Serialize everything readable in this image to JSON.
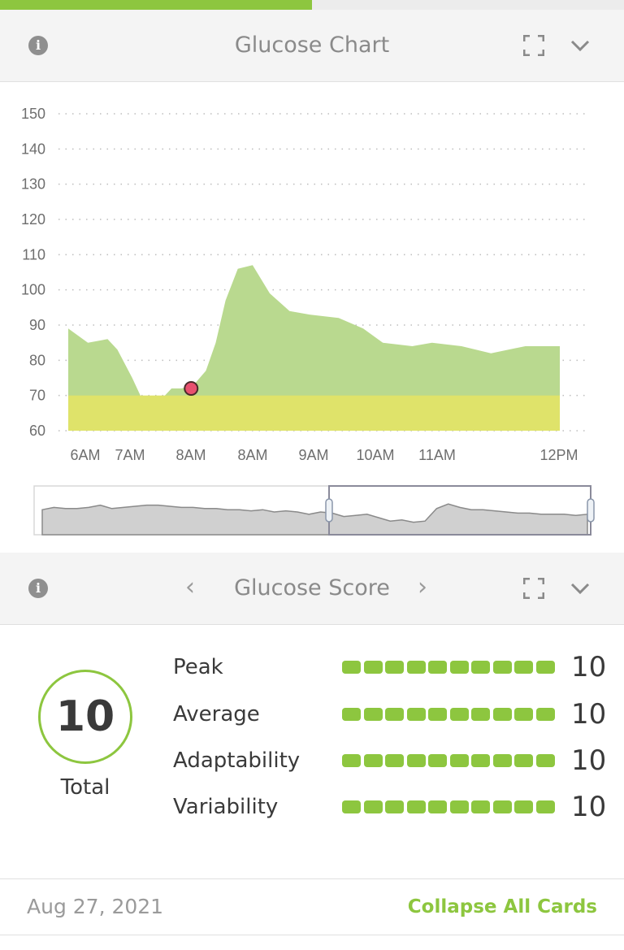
{
  "progress": {
    "fraction": 0.5,
    "color": "#8dc63f"
  },
  "glucose_card": {
    "title": "Glucose Chart",
    "icons": [
      "info-icon",
      "expand-icon",
      "chevron-down-icon"
    ]
  },
  "chart_data": {
    "type": "area",
    "yticks": [
      "150",
      "140",
      "130",
      "120",
      "110",
      "100",
      "90",
      "80",
      "70",
      "60"
    ],
    "ylim": [
      60,
      150
    ],
    "xtick_labels": [
      "6AM",
      "7AM",
      "8AM",
      "8AM",
      "9AM",
      "10AM",
      "11AM",
      "12PM"
    ],
    "grid": "dotted-horizontal",
    "target_band": {
      "low": 60,
      "high": 70,
      "color": "#dfe36a"
    },
    "series": [
      {
        "color": "#b9d98f",
        "points": [
          {
            "t": 0.0,
            "v": 89
          },
          {
            "t": 0.04,
            "v": 85
          },
          {
            "t": 0.08,
            "v": 86
          },
          {
            "t": 0.1,
            "v": 83
          },
          {
            "t": 0.13,
            "v": 75
          },
          {
            "t": 0.15,
            "v": 69
          },
          {
            "t": 0.17,
            "v": 67
          },
          {
            "t": 0.19,
            "v": 69
          },
          {
            "t": 0.21,
            "v": 72
          },
          {
            "t": 0.23,
            "v": 72
          },
          {
            "t": 0.255,
            "v": 73
          },
          {
            "t": 0.28,
            "v": 77
          },
          {
            "t": 0.3,
            "v": 85
          },
          {
            "t": 0.32,
            "v": 97
          },
          {
            "t": 0.345,
            "v": 106
          },
          {
            "t": 0.375,
            "v": 107
          },
          {
            "t": 0.41,
            "v": 99
          },
          {
            "t": 0.45,
            "v": 94
          },
          {
            "t": 0.49,
            "v": 93
          },
          {
            "t": 0.55,
            "v": 92
          },
          {
            "t": 0.6,
            "v": 89
          },
          {
            "t": 0.64,
            "v": 85
          },
          {
            "t": 0.7,
            "v": 84
          },
          {
            "t": 0.74,
            "v": 85
          },
          {
            "t": 0.8,
            "v": 84
          },
          {
            "t": 0.86,
            "v": 82
          },
          {
            "t": 0.93,
            "v": 84
          },
          {
            "t": 1.0,
            "v": 84
          }
        ]
      }
    ],
    "marker": {
      "t": 0.25,
      "v": 72,
      "color": "#e8516f"
    }
  },
  "overview": {
    "fill": "#d0d0d0",
    "values": [
      62,
      64,
      63,
      63,
      64,
      66,
      63,
      64,
      65,
      66,
      66,
      65,
      64,
      64,
      63,
      63,
      62,
      62,
      61,
      62,
      60,
      61,
      60,
      58,
      60,
      59,
      56,
      57,
      58,
      55,
      52,
      53,
      51,
      52,
      63,
      67,
      64,
      62,
      62,
      61,
      60,
      59,
      59,
      58,
      58,
      58,
      57,
      58
    ]
  },
  "score_card": {
    "title": "Glucose Score",
    "prev": "‹",
    "next": "›",
    "total": {
      "value": "10",
      "label": "Total"
    },
    "metrics": [
      {
        "label": "Peak",
        "value": "10",
        "level": 10
      },
      {
        "label": "Average",
        "value": "10",
        "level": 10
      },
      {
        "label": "Adaptability",
        "value": "10",
        "level": 10
      },
      {
        "label": "Variability",
        "value": "10",
        "level": 10
      }
    ]
  },
  "footer": {
    "date": "Aug 27, 2021",
    "collapse": "Collapse All Cards"
  }
}
